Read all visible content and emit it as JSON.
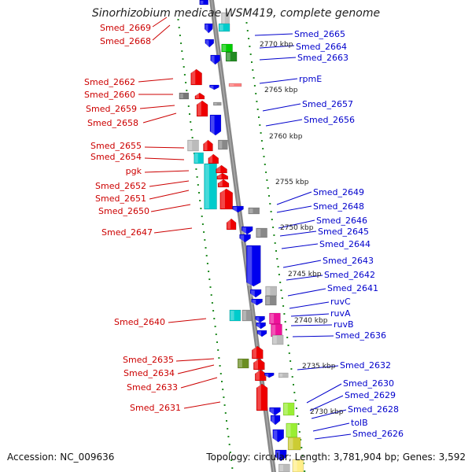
{
  "title": "Sinorhizobium medicae WSM419, complete genome",
  "accession": "Accession: NC_009636",
  "topology": "Topology: circular; Length: 3,781,904 bp; Genes: 3,592",
  "colors": {
    "left_label": "#cc0000",
    "right_label": "#0000cc",
    "backbone": "#888888",
    "ruler": "#228b22",
    "kbp_text": "#222222"
  },
  "kbp_markers": [
    "2770 kbp",
    "2765 kbp",
    "2760 kbp",
    "2755 kbp",
    "2750 kbp",
    "2745 kbp",
    "2740 kbp",
    "2735 kbp",
    "2730 kbp"
  ],
  "left_labels": [
    "Smed_2669",
    "Smed_2668",
    "Smed_2662",
    "Smed_2660",
    "Smed_2659",
    "Smed_2658",
    "Smed_2655",
    "Smed_2654",
    "pgk",
    "Smed_2652",
    "Smed_2651",
    "Smed_2650",
    "Smed_2647",
    "Smed_2640",
    "Smed_2635",
    "Smed_2634",
    "Smed_2633",
    "Smed_2631"
  ],
  "right_labels": [
    "Smed_2665",
    "Smed_2664",
    "Smed_2663",
    "rpmE",
    "Smed_2657",
    "Smed_2656",
    "Smed_2649",
    "Smed_2648",
    "Smed_2646",
    "Smed_2645",
    "Smed_2644",
    "Smed_2643",
    "Smed_2642",
    "Smed_2641",
    "ruvC",
    "ruvA",
    "ruvB",
    "Smed_2636",
    "Smed_2632",
    "Smed_2630",
    "Smed_2629",
    "Smed_2628",
    "tolB",
    "Smed_2626"
  ]
}
